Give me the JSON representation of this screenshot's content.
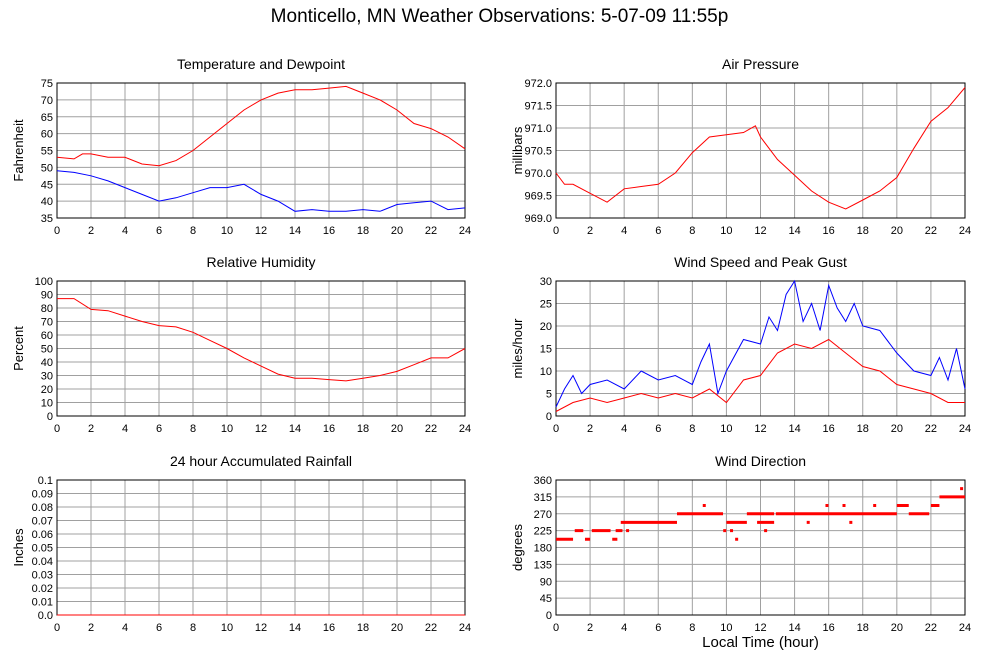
{
  "title": "Monticello, MN Weather Observations: 5-07-09 11:55p",
  "xlabel_bottom": "Local Time (hour)",
  "colors": {
    "red": "#ff0000",
    "blue": "#0000ff",
    "grid": "#a0a0a0",
    "frame": "#000000"
  },
  "chart_data": [
    {
      "type": "line",
      "title": "Temperature and Dewpoint",
      "ylabel": "Fahrenheit",
      "xlim": [
        0,
        24
      ],
      "ylim": [
        35,
        75
      ],
      "xticks": [
        0,
        2,
        4,
        6,
        8,
        10,
        12,
        14,
        16,
        18,
        20,
        22,
        24
      ],
      "yticks": [
        "35",
        "40",
        "45",
        "50",
        "55",
        "60",
        "65",
        "70",
        "75"
      ],
      "grid": true,
      "series": [
        {
          "color": "#ff0000",
          "x": [
            0,
            1,
            1.5,
            2,
            3,
            4,
            5,
            6,
            7,
            8,
            9,
            10,
            11,
            12,
            13,
            14,
            15,
            16,
            17,
            18,
            19,
            20,
            21,
            22,
            23,
            24
          ],
          "y": [
            53,
            52.5,
            54,
            54,
            53,
            53,
            51,
            50.5,
            52,
            55,
            59,
            63,
            67,
            70,
            72,
            73,
            73,
            73.5,
            74,
            72,
            70,
            67,
            63,
            61.5,
            59,
            55.5
          ]
        },
        {
          "color": "#0000ff",
          "x": [
            0,
            1,
            2,
            3,
            4,
            5,
            6,
            7,
            8,
            9,
            10,
            11,
            12,
            13,
            14,
            15,
            16,
            17,
            18,
            19,
            20,
            21,
            22,
            23,
            24
          ],
          "y": [
            49,
            48.5,
            47.5,
            46,
            44,
            42,
            40,
            41,
            42.5,
            44,
            44,
            45,
            42,
            40,
            37,
            37.5,
            37,
            37,
            37.5,
            37,
            39,
            39.5,
            40,
            37.5,
            38
          ]
        }
      ]
    },
    {
      "type": "line",
      "title": "Air Pressure",
      "ylabel": "millibars",
      "xlim": [
        0,
        24
      ],
      "ylim": [
        969.0,
        972.0
      ],
      "xticks": [
        0,
        2,
        4,
        6,
        8,
        10,
        12,
        14,
        16,
        18,
        20,
        22,
        24
      ],
      "yticks": [
        "969.0",
        "969.5",
        "970.0",
        "970.5",
        "971.0",
        "971.5",
        "972.0"
      ],
      "grid": true,
      "series": [
        {
          "color": "#ff0000",
          "x": [
            0,
            0.5,
            1,
            2,
            3,
            4,
            5,
            6,
            7,
            8,
            9,
            10,
            11,
            11.7,
            12,
            13,
            14,
            15,
            16,
            17,
            18,
            19,
            20,
            21,
            22,
            23,
            24
          ],
          "y": [
            970.0,
            969.75,
            969.75,
            969.55,
            969.35,
            969.65,
            969.7,
            969.75,
            970.0,
            970.45,
            970.8,
            970.85,
            970.9,
            971.05,
            970.8,
            970.3,
            969.95,
            969.6,
            969.35,
            969.2,
            969.4,
            969.6,
            969.9,
            970.55,
            971.15,
            971.45,
            971.9
          ]
        }
      ]
    },
    {
      "type": "line",
      "title": "Relative Humidity",
      "ylabel": "Percent",
      "xlim": [
        0,
        24
      ],
      "ylim": [
        0,
        100
      ],
      "xticks": [
        0,
        2,
        4,
        6,
        8,
        10,
        12,
        14,
        16,
        18,
        20,
        22,
        24
      ],
      "yticks": [
        "0",
        "10",
        "20",
        "30",
        "40",
        "50",
        "60",
        "70",
        "80",
        "90",
        "100"
      ],
      "grid": true,
      "series": [
        {
          "color": "#ff0000",
          "x": [
            0,
            1,
            2,
            3,
            4,
            5,
            6,
            7,
            8,
            9,
            10,
            11,
            12,
            13,
            14,
            15,
            16,
            17,
            18,
            19,
            20,
            21,
            22,
            23,
            24
          ],
          "y": [
            87,
            87,
            79,
            78,
            74,
            70,
            67,
            66,
            62,
            56,
            50,
            43,
            37,
            31,
            28,
            28,
            27,
            26,
            28,
            30,
            33,
            38,
            43,
            43,
            50
          ]
        }
      ]
    },
    {
      "type": "line",
      "title": "Wind Speed and Peak Gust",
      "ylabel": "miles/hour",
      "xlim": [
        0,
        24
      ],
      "ylim": [
        0,
        30
      ],
      "xticks": [
        0,
        2,
        4,
        6,
        8,
        10,
        12,
        14,
        16,
        18,
        20,
        22,
        24
      ],
      "yticks": [
        "0",
        "5",
        "10",
        "15",
        "20",
        "25",
        "30"
      ],
      "grid": true,
      "series": [
        {
          "color": "#0000ff",
          "x": [
            0,
            0.5,
            1,
            1.5,
            2,
            3,
            4,
            5,
            6,
            7,
            8,
            8.5,
            9,
            9.5,
            10,
            11,
            12,
            12.5,
            13,
            13.5,
            14,
            14.5,
            15,
            15.5,
            16,
            16.5,
            17,
            17.5,
            18,
            19,
            20,
            21,
            22,
            22.5,
            23,
            23.5,
            24
          ],
          "y": [
            2,
            6,
            9,
            5,
            7,
            8,
            6,
            10,
            8,
            9,
            7,
            12,
            16,
            5,
            10,
            17,
            16,
            22,
            19,
            27,
            30,
            21,
            25,
            19,
            29,
            24,
            21,
            25,
            20,
            19,
            14,
            10,
            9,
            13,
            8,
            15,
            6
          ]
        },
        {
          "color": "#ff0000",
          "x": [
            0,
            1,
            2,
            3,
            4,
            5,
            6,
            7,
            8,
            9,
            10,
            11,
            12,
            13,
            14,
            15,
            16,
            17,
            18,
            19,
            20,
            21,
            22,
            23,
            24
          ],
          "y": [
            1,
            3,
            4,
            3,
            4,
            5,
            4,
            5,
            4,
            6,
            3,
            8,
            9,
            14,
            16,
            15,
            17,
            14,
            11,
            10,
            7,
            6,
            5,
            3,
            3
          ]
        }
      ]
    },
    {
      "type": "line",
      "title": "24 hour Accumulated Rainfall",
      "ylabel": "Inches",
      "xlim": [
        0,
        24
      ],
      "ylim": [
        0,
        0.1
      ],
      "xticks": [
        0,
        2,
        4,
        6,
        8,
        10,
        12,
        14,
        16,
        18,
        20,
        22,
        24
      ],
      "yticks": [
        "0.0",
        "0.01",
        "0.02",
        "0.03",
        "0.04",
        "0.05",
        "0.06",
        "0.07",
        "0.08",
        "0.09",
        "0.1"
      ],
      "grid": true,
      "series": [
        {
          "color": "#ff0000",
          "x": [
            0,
            24
          ],
          "y": [
            0,
            0
          ]
        }
      ]
    },
    {
      "type": "scatter",
      "title": "Wind Direction",
      "ylabel": "degrees",
      "xlim": [
        0,
        24
      ],
      "ylim": [
        0,
        360
      ],
      "xticks": [
        0,
        2,
        4,
        6,
        8,
        10,
        12,
        14,
        16,
        18,
        20,
        22,
        24
      ],
      "yticks": [
        "0",
        "45",
        "90",
        "135",
        "180",
        "225",
        "270",
        "315",
        "360"
      ],
      "grid": true,
      "series": [
        {
          "color": "#ff0000",
          "segments": [
            {
              "y": 202,
              "x": [
                0,
                1
              ]
            },
            {
              "y": 225,
              "x": [
                1.1,
                1.6
              ]
            },
            {
              "y": 202,
              "x": [
                1.7,
                2
              ]
            },
            {
              "y": 225,
              "x": [
                2.1,
                3.2
              ]
            },
            {
              "y": 202,
              "x": [
                3.3,
                3.6
              ]
            },
            {
              "y": 225,
              "x": [
                3.5,
                3.9
              ]
            },
            {
              "y": 247,
              "x": [
                3.8,
                7.1
              ]
            },
            {
              "y": 270,
              "x": [
                7.1,
                9.8
              ]
            },
            {
              "y": 247,
              "x": [
                10,
                11.2
              ]
            },
            {
              "y": 270,
              "x": [
                11.2,
                12.8
              ]
            },
            {
              "y": 247,
              "x": [
                11.8,
                12.8
              ]
            },
            {
              "y": 270,
              "x": [
                12.9,
                20.0
              ]
            },
            {
              "y": 292,
              "x": [
                20.0,
                20.7
              ]
            },
            {
              "y": 270,
              "x": [
                20.7,
                21.9
              ]
            },
            {
              "y": 292,
              "x": [
                22.0,
                22.5
              ]
            },
            {
              "y": 315,
              "x": [
                22.5,
                24
              ]
            }
          ],
          "points": [
            {
              "x": 4.2,
              "y": 225
            },
            {
              "x": 8.7,
              "y": 292
            },
            {
              "x": 9.9,
              "y": 225
            },
            {
              "x": 10.3,
              "y": 225
            },
            {
              "x": 10.6,
              "y": 202
            },
            {
              "x": 12.3,
              "y": 225
            },
            {
              "x": 14.8,
              "y": 247
            },
            {
              "x": 15.9,
              "y": 292
            },
            {
              "x": 16.9,
              "y": 292
            },
            {
              "x": 17.3,
              "y": 247
            },
            {
              "x": 18.7,
              "y": 292
            },
            {
              "x": 23.8,
              "y": 337
            }
          ]
        }
      ]
    }
  ]
}
